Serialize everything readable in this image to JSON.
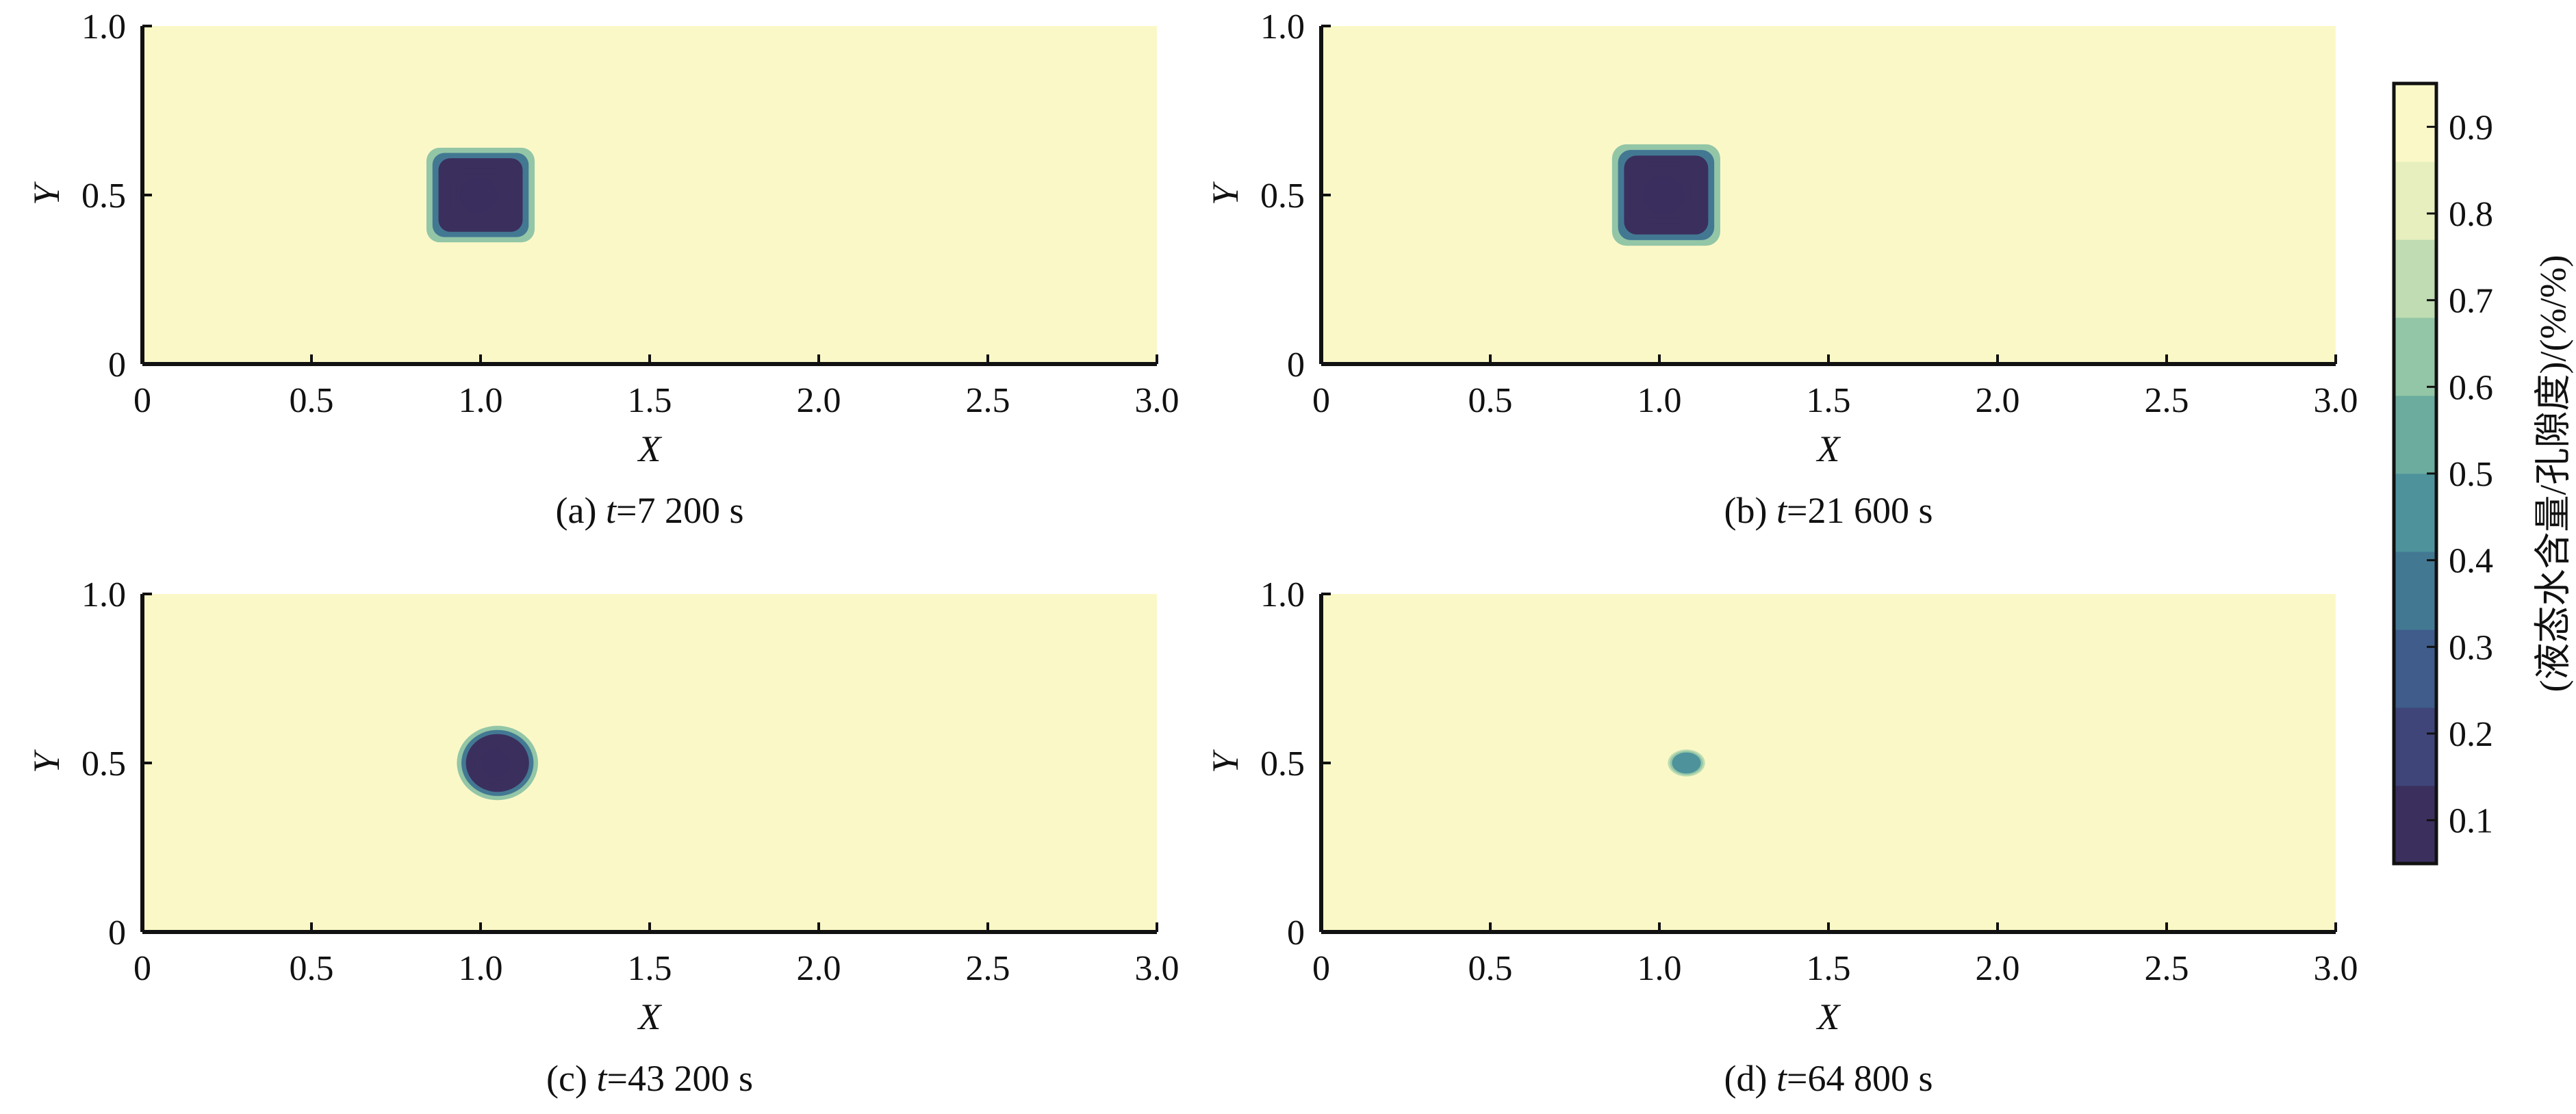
{
  "figure": {
    "colorbar": {
      "title": "(液态水含量/孔隙度)/(%/%)",
      "ticks": [
        0.1,
        0.2,
        0.3,
        0.4,
        0.5,
        0.6,
        0.7,
        0.8,
        0.9
      ],
      "range": [
        0.05,
        0.95
      ],
      "colors": [
        "#3b2f5e",
        "#3f4578",
        "#3f5c8a",
        "#437893",
        "#4e929c",
        "#6bac9f",
        "#93c6a6",
        "#bfdcb2",
        "#e6efbd",
        "#fbf8c8"
      ]
    },
    "captions": [
      "(a) t=7 200 s",
      "(b) t=21 600 s",
      "(c) t=43 200 s",
      "(d) t=64 800 s"
    ]
  },
  "chart_data": [
    {
      "type": "heatmap",
      "caption_prefix": "(a) ",
      "caption_var": "t",
      "caption_value": "=7 200 s",
      "xlabel": "X",
      "ylabel": "Y",
      "xlim": [
        0,
        3.0
      ],
      "ylim": [
        0,
        1.0
      ],
      "xticks": [
        "0",
        "0.5",
        "1.0",
        "1.5",
        "2.0",
        "2.5",
        "3.0"
      ],
      "yticks": [
        "0",
        "0.5",
        "1.0"
      ],
      "background_value": 0.95,
      "anomaly": {
        "shape": "rounded-square",
        "center": [
          1.0,
          0.5
        ],
        "half_width_x": 0.16,
        "half_width_y": 0.14,
        "min_value": 0.1
      }
    },
    {
      "type": "heatmap",
      "caption_prefix": "(b) ",
      "caption_var": "t",
      "caption_value": "=21 600 s",
      "xlabel": "X",
      "ylabel": "Y",
      "xlim": [
        0,
        3.0
      ],
      "ylim": [
        0,
        1.0
      ],
      "xticks": [
        "0",
        "0.5",
        "1.0",
        "1.5",
        "2.0",
        "2.5",
        "3.0"
      ],
      "yticks": [
        "0",
        "0.5",
        "1.0"
      ],
      "background_value": 0.95,
      "anomaly": {
        "shape": "rounded-square",
        "center": [
          1.02,
          0.5
        ],
        "half_width_x": 0.16,
        "half_width_y": 0.15,
        "min_value": 0.1
      }
    },
    {
      "type": "heatmap",
      "caption_prefix": "(c) ",
      "caption_var": "t",
      "caption_value": "=43 200 s",
      "xlabel": "X",
      "ylabel": "Y",
      "xlim": [
        0,
        3.0
      ],
      "ylim": [
        0,
        1.0
      ],
      "xticks": [
        "0",
        "0.5",
        "1.0",
        "1.5",
        "2.0",
        "2.5",
        "3.0"
      ],
      "yticks": [
        "0",
        "0.5",
        "1.0"
      ],
      "background_value": 0.95,
      "anomaly": {
        "shape": "circle",
        "center": [
          1.05,
          0.5
        ],
        "half_width_x": 0.12,
        "half_width_y": 0.11,
        "min_value": 0.1
      }
    },
    {
      "type": "heatmap",
      "caption_prefix": "(d) ",
      "caption_var": "t",
      "caption_value": "=64 800 s",
      "xlabel": "X",
      "ylabel": "Y",
      "xlim": [
        0,
        3.0
      ],
      "ylim": [
        0,
        1.0
      ],
      "xticks": [
        "0",
        "0.5",
        "1.0",
        "1.5",
        "2.0",
        "2.5",
        "3.0"
      ],
      "yticks": [
        "0",
        "0.5",
        "1.0"
      ],
      "background_value": 0.95,
      "anomaly": {
        "shape": "ellipse",
        "center": [
          1.08,
          0.5
        ],
        "half_width_x": 0.055,
        "half_width_y": 0.04,
        "min_value": 0.45
      }
    }
  ]
}
